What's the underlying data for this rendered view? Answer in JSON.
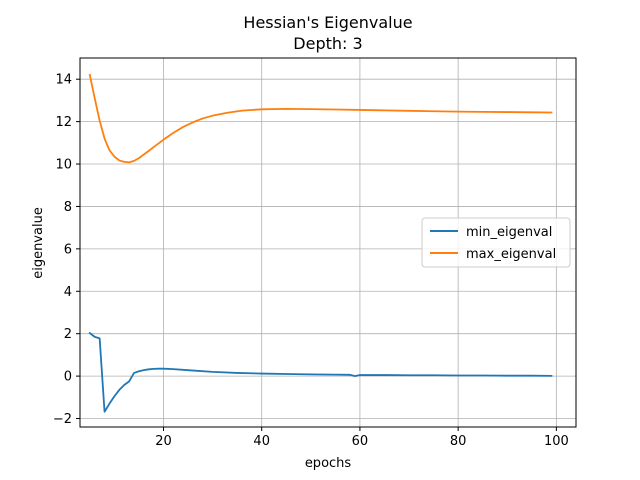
{
  "chart_data": {
    "type": "line",
    "title": "Hessian's Eigenvalue",
    "subtitle": "Depth: 3",
    "xlabel": "epochs",
    "ylabel": "eigenvalue",
    "xlim": [
      3,
      104
    ],
    "ylim": [
      -2.4,
      15.0
    ],
    "x_ticks": [
      20,
      40,
      60,
      80,
      100
    ],
    "y_ticks": [
      -2,
      0,
      2,
      4,
      6,
      8,
      10,
      12,
      14
    ],
    "x_tick_labels": [
      "20",
      "40",
      "60",
      "80",
      "100"
    ],
    "y_tick_labels": [
      "−2",
      "0",
      "2",
      "4",
      "6",
      "8",
      "10",
      "12",
      "14"
    ],
    "grid": true,
    "legend_position": "center-right",
    "series": [
      {
        "name": "min_eigenval",
        "color": "#1f77b4",
        "points": [
          [
            5,
            2.03
          ],
          [
            6,
            1.85
          ],
          [
            7,
            1.78
          ],
          [
            8,
            -1.68
          ],
          [
            9,
            -1.3
          ],
          [
            10,
            -0.95
          ],
          [
            11,
            -0.65
          ],
          [
            12,
            -0.42
          ],
          [
            13,
            -0.25
          ],
          [
            14,
            0.15
          ],
          [
            15,
            0.23
          ],
          [
            16,
            0.28
          ],
          [
            17,
            0.32
          ],
          [
            18,
            0.34
          ],
          [
            19,
            0.35
          ],
          [
            20,
            0.35
          ],
          [
            22,
            0.33
          ],
          [
            25,
            0.28
          ],
          [
            30,
            0.2
          ],
          [
            35,
            0.15
          ],
          [
            40,
            0.12
          ],
          [
            45,
            0.1
          ],
          [
            50,
            0.08
          ],
          [
            55,
            0.07
          ],
          [
            58,
            0.06
          ],
          [
            59,
            0.0
          ],
          [
            60,
            0.05
          ],
          [
            65,
            0.05
          ],
          [
            70,
            0.04
          ],
          [
            75,
            0.04
          ],
          [
            80,
            0.03
          ],
          [
            85,
            0.03
          ],
          [
            90,
            0.02
          ],
          [
            95,
            0.02
          ],
          [
            99,
            0.01
          ]
        ]
      },
      {
        "name": "max_eigenval",
        "color": "#ff7f0e",
        "points": [
          [
            5,
            14.2
          ],
          [
            6,
            13.1
          ],
          [
            7,
            12.05
          ],
          [
            8,
            11.2
          ],
          [
            9,
            10.65
          ],
          [
            10,
            10.35
          ],
          [
            11,
            10.17
          ],
          [
            12,
            10.1
          ],
          [
            13,
            10.08
          ],
          [
            14,
            10.15
          ],
          [
            15,
            10.28
          ],
          [
            16,
            10.45
          ],
          [
            17,
            10.62
          ],
          [
            18,
            10.8
          ],
          [
            19,
            10.97
          ],
          [
            20,
            11.15
          ],
          [
            22,
            11.47
          ],
          [
            24,
            11.75
          ],
          [
            26,
            11.97
          ],
          [
            28,
            12.15
          ],
          [
            30,
            12.28
          ],
          [
            33,
            12.42
          ],
          [
            36,
            12.52
          ],
          [
            40,
            12.58
          ],
          [
            45,
            12.6
          ],
          [
            50,
            12.59
          ],
          [
            55,
            12.57
          ],
          [
            60,
            12.55
          ],
          [
            65,
            12.53
          ],
          [
            70,
            12.51
          ],
          [
            75,
            12.49
          ],
          [
            80,
            12.47
          ],
          [
            85,
            12.46
          ],
          [
            90,
            12.45
          ],
          [
            95,
            12.44
          ],
          [
            99,
            12.43
          ]
        ]
      }
    ]
  }
}
